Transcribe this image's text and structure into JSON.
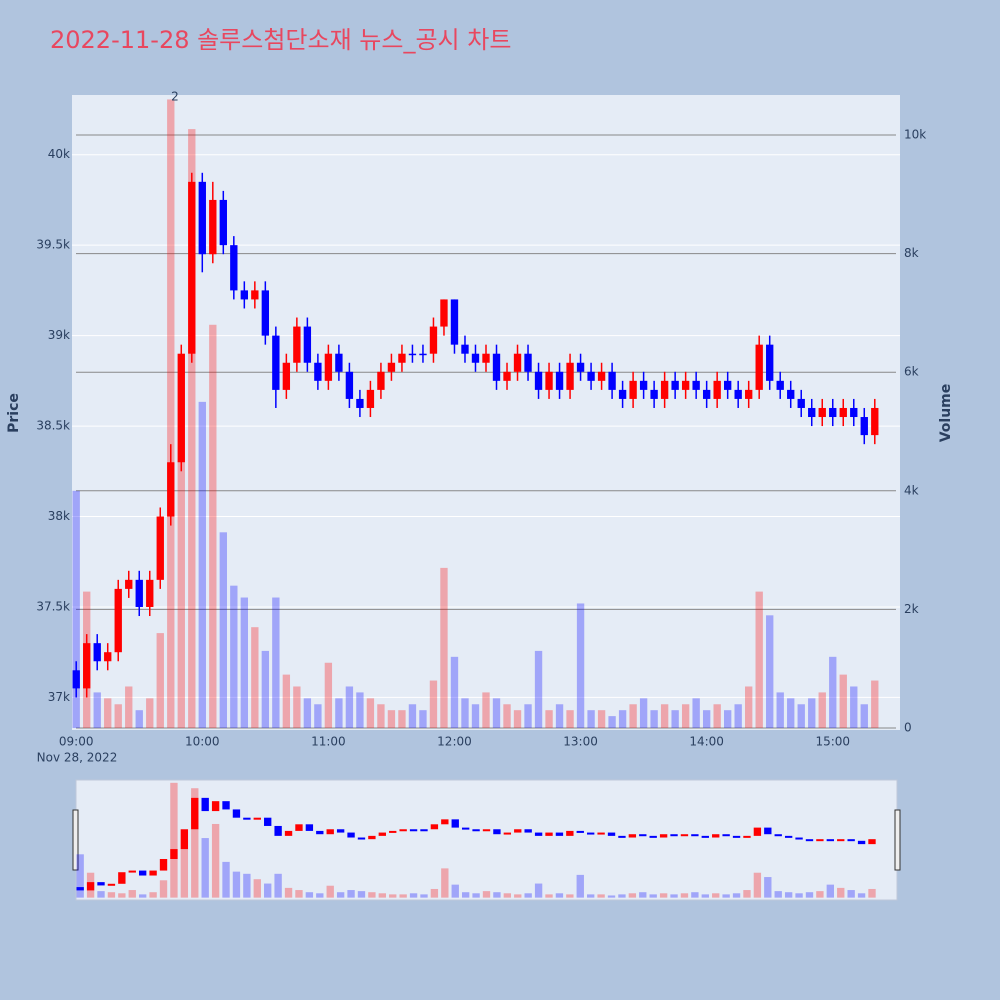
{
  "chart_data": {
    "type": "candlestick",
    "title": "2022-11-28 솔루스첨단소재 뉴스_공시 차트",
    "y_title": "Price",
    "y2_title": "Volume",
    "x_date_label": "Nov 28, 2022",
    "annotation": {
      "text": "2",
      "x": "2022-11-28 09:47"
    },
    "increasing_color": "#ff0000",
    "decreasing_color": "#0000ff",
    "xlim": [
      "2022-11-28 08:58",
      "2022-11-28 15:32"
    ],
    "xticks": [
      {
        "value": "2022-11-28 09:00",
        "label": "09:00"
      },
      {
        "value": "2022-11-28 10:00",
        "label": "10:00"
      },
      {
        "value": "2022-11-28 11:00",
        "label": "11:00"
      },
      {
        "value": "2022-11-28 12:00",
        "label": "12:00"
      },
      {
        "value": "2022-11-28 13:00",
        "label": "13:00"
      },
      {
        "value": "2022-11-28 14:00",
        "label": "14:00"
      },
      {
        "value": "2022-11-28 15:00",
        "label": "15:00"
      }
    ],
    "ylim": [
      36820,
      40330
    ],
    "yticks": [
      {
        "value": 37000,
        "label": "37k"
      },
      {
        "value": 37500,
        "label": "37.5k"
      },
      {
        "value": 38000,
        "label": "38k"
      },
      {
        "value": 38500,
        "label": "38.5k"
      },
      {
        "value": 39000,
        "label": "39k"
      },
      {
        "value": 39500,
        "label": "39.5k"
      },
      {
        "value": 40000,
        "label": "40k"
      }
    ],
    "y2lim": [
      -34,
      10675
    ],
    "y2ticks": [
      0,
      {
        "value": 2000,
        "label": "2k"
      },
      {
        "value": 4000,
        "label": "4k"
      },
      {
        "value": 6000,
        "label": "6k"
      },
      {
        "value": 8000,
        "label": "8k"
      },
      {
        "value": 10000,
        "label": "10k"
      }
    ],
    "x": [
      "2022-11-28 09:00",
      "2022-11-28 09:05",
      "2022-11-28 09:10",
      "2022-11-28 09:15",
      "2022-11-28 09:20",
      "2022-11-28 09:25",
      "2022-11-28 09:30",
      "2022-11-28 09:35",
      "2022-11-28 09:40",
      "2022-11-28 09:45",
      "2022-11-28 09:50",
      "2022-11-28 09:55",
      "2022-11-28 10:00",
      "2022-11-28 10:05",
      "2022-11-28 10:10",
      "2022-11-28 10:15",
      "2022-11-28 10:20",
      "2022-11-28 10:25",
      "2022-11-28 10:30",
      "2022-11-28 10:35",
      "2022-11-28 10:40",
      "2022-11-28 10:45",
      "2022-11-28 10:50",
      "2022-11-28 10:55",
      "2022-11-28 11:00",
      "2022-11-28 11:05",
      "2022-11-28 11:10",
      "2022-11-28 11:15",
      "2022-11-28 11:20",
      "2022-11-28 11:25",
      "2022-11-28 11:30",
      "2022-11-28 11:35",
      "2022-11-28 11:40",
      "2022-11-28 11:45",
      "2022-11-28 11:50",
      "2022-11-28 11:55",
      "2022-11-28 12:00",
      "2022-11-28 12:05",
      "2022-11-28 12:10",
      "2022-11-28 12:15",
      "2022-11-28 12:20",
      "2022-11-28 12:25",
      "2022-11-28 12:30",
      "2022-11-28 12:35",
      "2022-11-28 12:40",
      "2022-11-28 12:45",
      "2022-11-28 12:50",
      "2022-11-28 12:55",
      "2022-11-28 13:00",
      "2022-11-28 13:05",
      "2022-11-28 13:10",
      "2022-11-28 13:15",
      "2022-11-28 13:20",
      "2022-11-28 13:25",
      "2022-11-28 13:30",
      "2022-11-28 13:35",
      "2022-11-28 13:40",
      "2022-11-28 13:45",
      "2022-11-28 13:50",
      "2022-11-28 13:55",
      "2022-11-28 14:00",
      "2022-11-28 14:05",
      "2022-11-28 14:10",
      "2022-11-28 14:15",
      "2022-11-28 14:20",
      "2022-11-28 14:25",
      "2022-11-28 14:30",
      "2022-11-28 14:35",
      "2022-11-28 14:40",
      "2022-11-28 14:45",
      "2022-11-28 14:50",
      "2022-11-28 14:55",
      "2022-11-28 15:00",
      "2022-11-28 15:05",
      "2022-11-28 15:10",
      "2022-11-28 15:15",
      "2022-11-28 15:20"
    ],
    "open": [
      37150,
      37050,
      37300,
      37200,
      37250,
      37600,
      37650,
      37500,
      37650,
      38000,
      38300,
      38900,
      39850,
      39450,
      39750,
      39500,
      39250,
      39200,
      39250,
      39000,
      38700,
      38850,
      39050,
      38850,
      38750,
      38900,
      38800,
      38650,
      38600,
      38700,
      38800,
      38850,
      38900,
      38900,
      38900,
      39050,
      39200,
      38950,
      38900,
      38850,
      38900,
      38750,
      38800,
      38900,
      38800,
      38700,
      38800,
      38700,
      38850,
      38800,
      38750,
      38800,
      38700,
      38650,
      38750,
      38700,
      38650,
      38750,
      38700,
      38750,
      38700,
      38650,
      38750,
      38700,
      38650,
      38700,
      38950,
      38750,
      38700,
      38650,
      38600,
      38550,
      38600,
      38550,
      38600,
      38550,
      38450
    ],
    "high": [
      37200,
      37350,
      37350,
      37300,
      37650,
      37700,
      37700,
      37700,
      38050,
      38400,
      38950,
      39900,
      39900,
      39850,
      39800,
      39550,
      39300,
      39300,
      39300,
      39050,
      38900,
      39100,
      39100,
      38900,
      38950,
      38950,
      38850,
      38700,
      38750,
      38850,
      38900,
      38950,
      38950,
      38950,
      39100,
      39200,
      39200,
      39000,
      38950,
      38950,
      38950,
      38850,
      38950,
      38950,
      38850,
      38850,
      38850,
      38900,
      38900,
      38850,
      38850,
      38850,
      38750,
      38800,
      38800,
      38750,
      38800,
      38800,
      38800,
      38800,
      38750,
      38800,
      38800,
      38750,
      38750,
      39000,
      39000,
      38800,
      38750,
      38700,
      38650,
      38650,
      38650,
      38650,
      38650,
      38600,
      38650
    ],
    "low": [
      37000,
      37000,
      37150,
      37150,
      37200,
      37550,
      37450,
      37450,
      37600,
      37950,
      38250,
      38850,
      39350,
      39400,
      39450,
      39200,
      39150,
      39150,
      38950,
      38600,
      38650,
      38800,
      38800,
      38700,
      38700,
      38750,
      38600,
      38550,
      38550,
      38650,
      38750,
      38800,
      38850,
      38850,
      38850,
      39000,
      38900,
      38850,
      38800,
      38800,
      38700,
      38700,
      38750,
      38750,
      38650,
      38650,
      38650,
      38650,
      38750,
      38700,
      38700,
      38650,
      38600,
      38600,
      38650,
      38600,
      38600,
      38650,
      38650,
      38650,
      38600,
      38600,
      38650,
      38600,
      38600,
      38650,
      38700,
      38650,
      38600,
      38550,
      38500,
      38500,
      38500,
      38500,
      38500,
      38400,
      38400
    ],
    "close": [
      37050,
      37300,
      37200,
      37250,
      37600,
      37650,
      37500,
      37650,
      38000,
      38300,
      38900,
      39850,
      39450,
      39750,
      39500,
      39250,
      39200,
      39250,
      39000,
      38700,
      38850,
      39050,
      38850,
      38750,
      38900,
      38800,
      38650,
      38600,
      38700,
      38800,
      38850,
      38900,
      38900,
      38900,
      39050,
      39200,
      38950,
      38900,
      38850,
      38900,
      38750,
      38800,
      38900,
      38800,
      38700,
      38800,
      38700,
      38850,
      38800,
      38750,
      38800,
      38700,
      38650,
      38750,
      38700,
      38650,
      38750,
      38700,
      38750,
      38700,
      38650,
      38750,
      38700,
      38650,
      38700,
      38950,
      38750,
      38700,
      38650,
      38600,
      38550,
      38600,
      38550,
      38600,
      38550,
      38450,
      38600
    ],
    "volume": [
      4000,
      2300,
      600,
      500,
      400,
      700,
      300,
      500,
      1600,
      10600,
      4500,
      10100,
      5500,
      6800,
      3300,
      2400,
      2200,
      1700,
      1300,
      2200,
      900,
      700,
      500,
      400,
      1100,
      500,
      700,
      600,
      500,
      400,
      300,
      300,
      400,
      300,
      800,
      2700,
      1200,
      500,
      400,
      600,
      500,
      400,
      300,
      400,
      1300,
      300,
      400,
      300,
      2100,
      300,
      300,
      200,
      300,
      400,
      500,
      300,
      400,
      300,
      400,
      500,
      300,
      400,
      300,
      400,
      700,
      2300,
      1900,
      600,
      500,
      400,
      500,
      600,
      1200,
      900,
      700,
      400,
      800
    ]
  }
}
